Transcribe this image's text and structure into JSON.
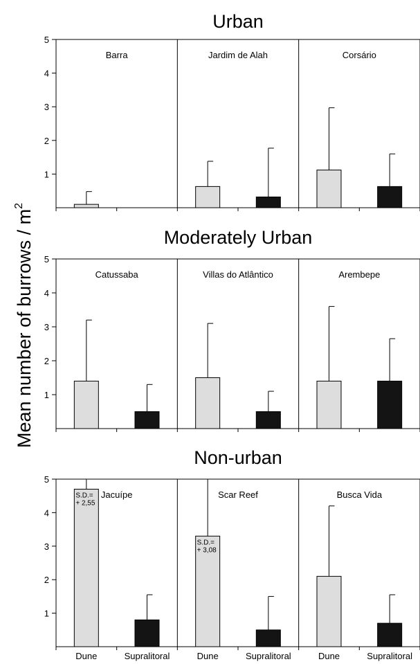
{
  "figure": {
    "ylabel": "Mean number of burrows / m",
    "ylabel_sup": "2",
    "xtick_labels": [
      "Dune",
      "Supralitoral",
      "Dune",
      "Supralitoral",
      "Dune",
      "Supralitoral"
    ]
  },
  "chart_data": [
    {
      "type": "bar",
      "title": "Urban",
      "ylim": [
        0,
        5
      ],
      "yticks": [
        1,
        2,
        3,
        4,
        5
      ],
      "categories": [
        "Dune",
        "Supralitoral"
      ],
      "category_colors": [
        "#dddddd",
        "#141414"
      ],
      "grid": false,
      "sites": [
        {
          "name": "Barra",
          "values": [
            0.1,
            0
          ],
          "sd": [
            0.38,
            0
          ]
        },
        {
          "name": "Jardim de Alah",
          "values": [
            0.63,
            0.32
          ],
          "sd": [
            0.75,
            1.45
          ]
        },
        {
          "name": "Corsário",
          "values": [
            1.12,
            0.63
          ],
          "sd": [
            1.85,
            0.97
          ]
        }
      ]
    },
    {
      "type": "bar",
      "title": "Moderately Urban",
      "ylim": [
        0,
        5
      ],
      "yticks": [
        1,
        2,
        3,
        4,
        5
      ],
      "categories": [
        "Dune",
        "Supralitoral"
      ],
      "category_colors": [
        "#dddddd",
        "#141414"
      ],
      "grid": false,
      "sites": [
        {
          "name": "Catussaba",
          "values": [
            1.4,
            0.5
          ],
          "sd": [
            1.8,
            0.8
          ]
        },
        {
          "name": "Villas do Atlântico",
          "values": [
            1.5,
            0.5
          ],
          "sd": [
            1.6,
            0.6
          ]
        },
        {
          "name": "Arembepe",
          "values": [
            1.4,
            1.4
          ],
          "sd": [
            2.2,
            1.25
          ]
        }
      ]
    },
    {
      "type": "bar",
      "title": "Non-urban",
      "ylim": [
        0,
        5
      ],
      "yticks": [
        1,
        2,
        3,
        4,
        5
      ],
      "categories": [
        "Dune",
        "Supralitoral"
      ],
      "category_colors": [
        "#dddddd",
        "#141414"
      ],
      "grid": false,
      "sites": [
        {
          "name": "Jacuípe",
          "values": [
            4.7,
            0.8
          ],
          "sd": [
            2.55,
            0.75
          ],
          "sd_label": [
            "S.D.=",
            "+ 2,55"
          ]
        },
        {
          "name": "Scar Reef",
          "values": [
            3.3,
            0.5
          ],
          "sd": [
            3.08,
            1.0
          ],
          "sd_label": [
            "S.D.=",
            "+ 3,08"
          ]
        },
        {
          "name": "Busca Vida",
          "values": [
            2.1,
            0.7
          ],
          "sd": [
            2.1,
            0.85
          ]
        }
      ]
    }
  ]
}
